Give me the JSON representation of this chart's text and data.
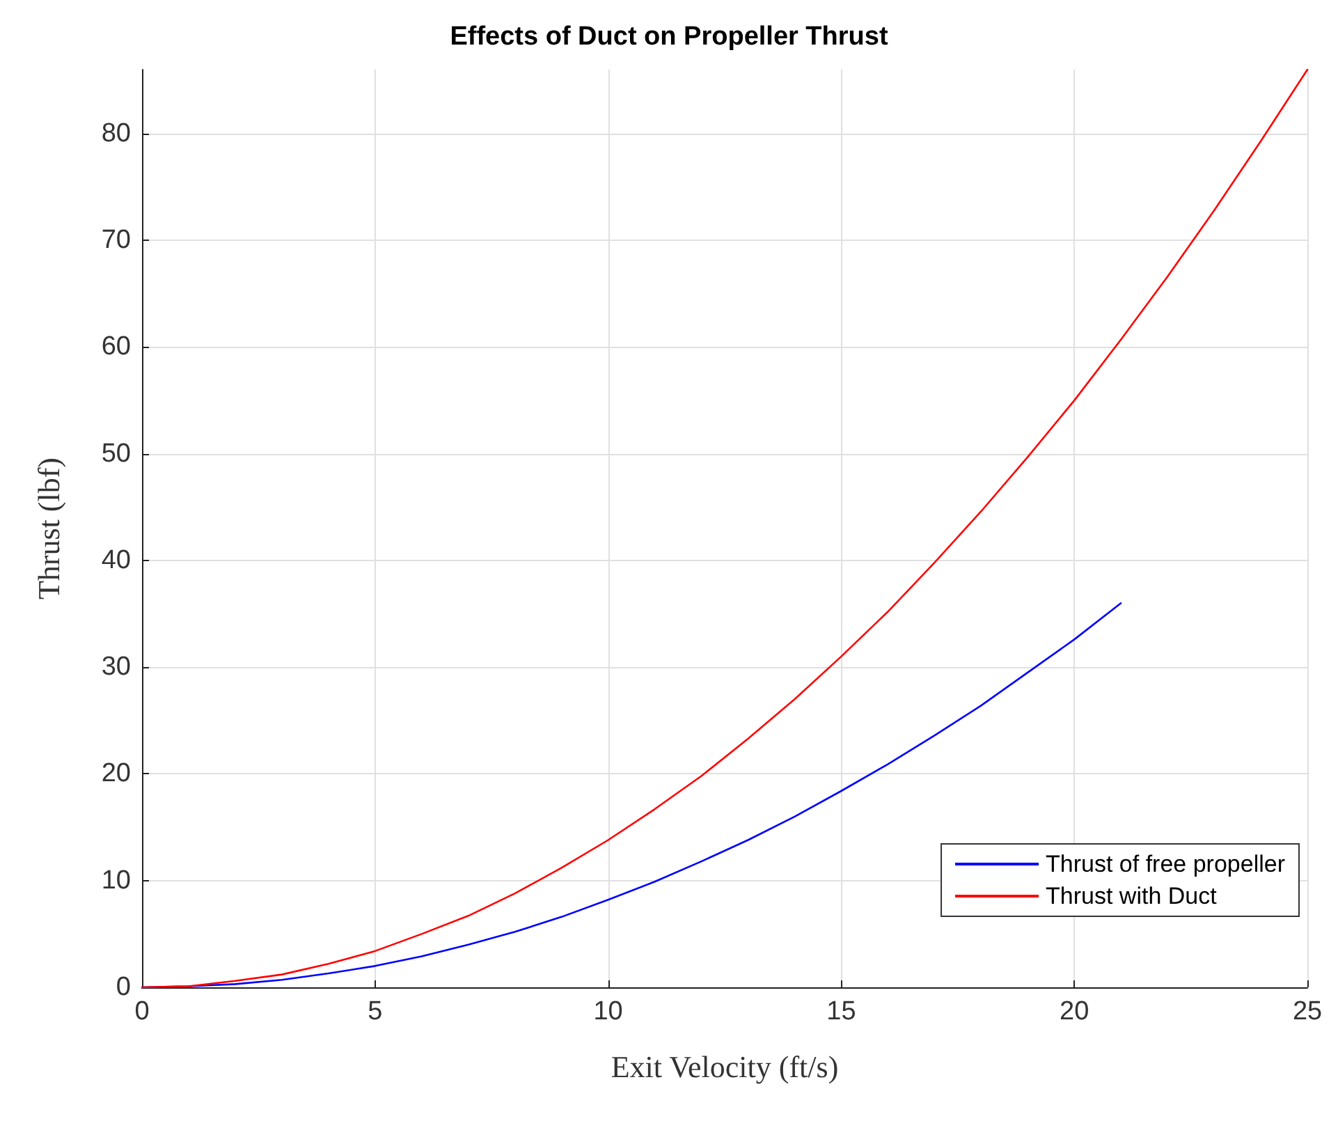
{
  "chart_data": {
    "type": "line",
    "title": "Effects of Duct on Propeller Thrust",
    "xlabel": "Exit Velocity (ft/s)",
    "ylabel": "Thrust (lbf)",
    "series": [
      {
        "name": "Thrust of free propeller",
        "color": "#0000ff",
        "x": [
          0,
          1,
          2,
          3,
          4,
          5,
          6,
          7,
          8,
          9,
          10,
          11,
          12,
          13,
          14,
          15,
          16,
          17,
          18,
          19,
          20,
          21
        ],
        "values": [
          0,
          0.1,
          0.3,
          0.7,
          1.3,
          2,
          2.9,
          4,
          5.2,
          6.6,
          8.2,
          9.9,
          11.8,
          13.8,
          16,
          18.4,
          20.9,
          23.6,
          26.4,
          29.5,
          32.6,
          36
        ]
      },
      {
        "name": "Thrust with Duct",
        "color": "#ff0000",
        "x": [
          0,
          1,
          2,
          3,
          4,
          5,
          6,
          7,
          8,
          9,
          10,
          11,
          12,
          13,
          14,
          15,
          16,
          17,
          18,
          19,
          20,
          21,
          22,
          23,
          24,
          25
        ],
        "values": [
          0,
          0.1,
          0.6,
          1.2,
          2.2,
          3.4,
          5,
          6.7,
          8.8,
          11.2,
          13.8,
          16.7,
          19.8,
          23.3,
          27,
          31,
          35.2,
          39.8,
          44.6,
          49.7,
          55,
          60.7,
          66.6,
          72.8,
          79.3,
          86
        ]
      }
    ],
    "xlim": [
      0,
      25
    ],
    "xticks": [
      0,
      5,
      10,
      15,
      20,
      25
    ],
    "ylim": [
      0,
      86
    ],
    "yticks": [
      0,
      10,
      20,
      30,
      40,
      50,
      60,
      70,
      80
    ],
    "grid": true,
    "legend": "bottom right",
    "marker": "none",
    "line_style": "solid"
  }
}
